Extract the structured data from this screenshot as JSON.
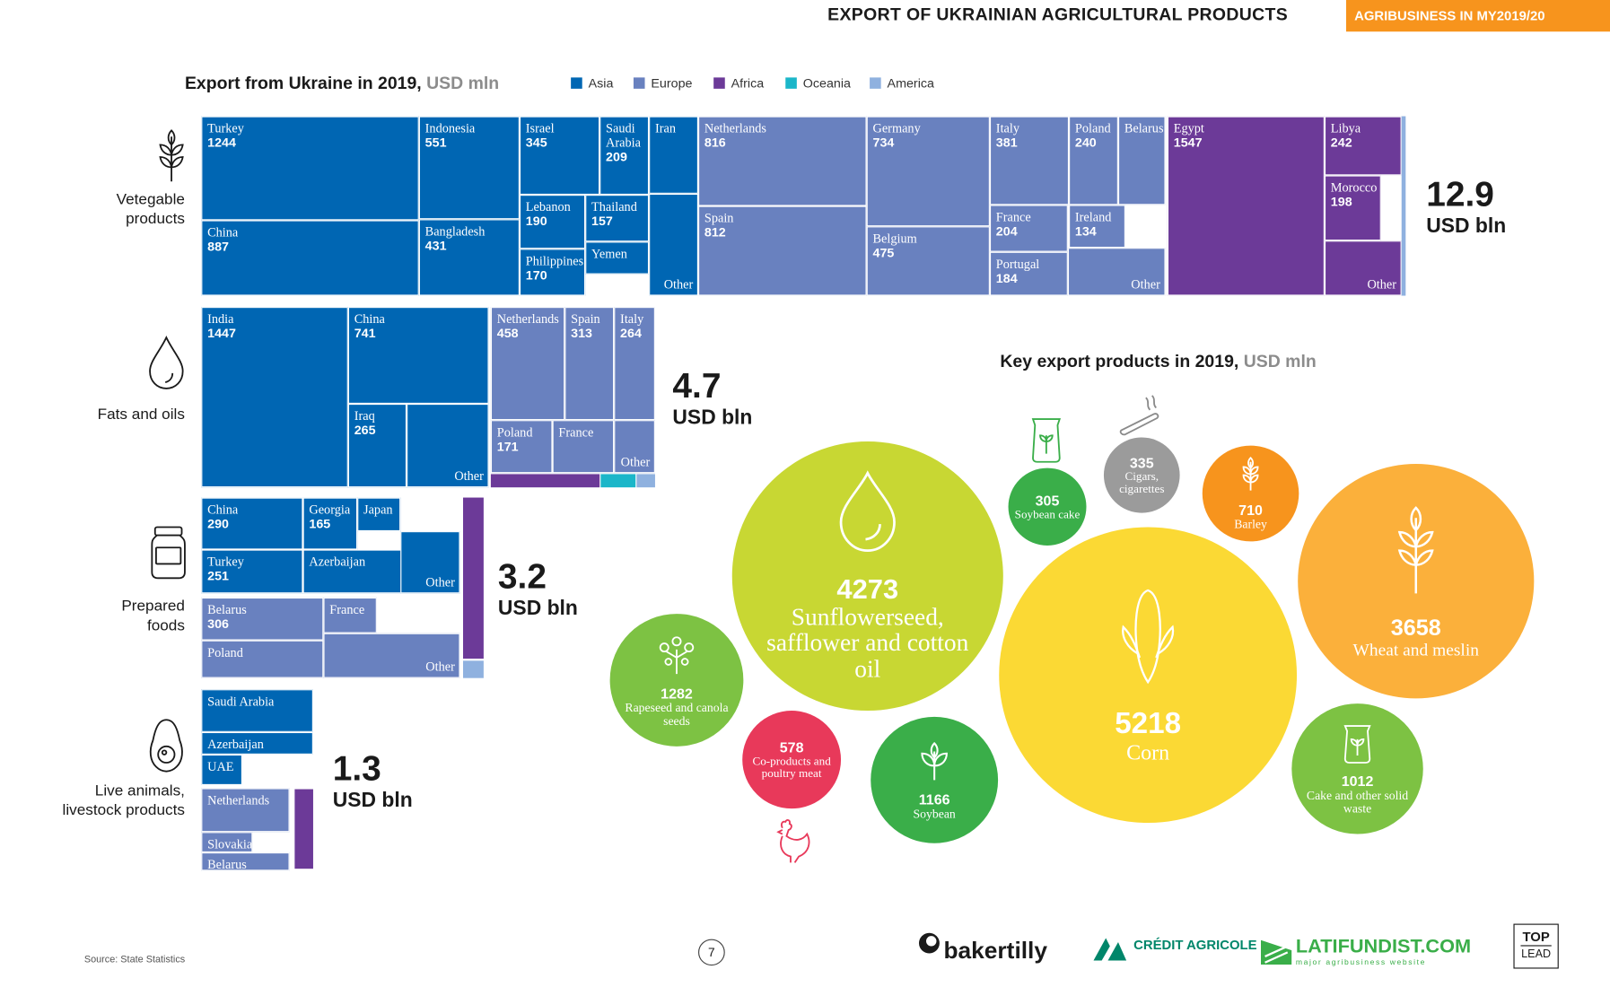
{
  "header": {
    "title": "EXPORT OF UKRAINIAN AGRICULTURAL PRODUCTS",
    "badge": "AGRIBUSINESS IN MY2019/20"
  },
  "treemap_section": {
    "title": "Export from Ukraine in 2019,",
    "unit": "USD mln"
  },
  "legend": [
    {
      "label": "Asia",
      "color": "#0066b3"
    },
    {
      "label": "Europe",
      "color": "#6981bf"
    },
    {
      "label": "Africa",
      "color": "#6c3a98"
    },
    {
      "label": "Oceania",
      "color": "#1bb6c9"
    },
    {
      "label": "America",
      "color": "#8fb1df"
    }
  ],
  "categories": [
    {
      "label": "Vetegable products",
      "total": "12.9",
      "total_unit": "USD bln"
    },
    {
      "label": "Fats and oils",
      "total": "4.7",
      "total_unit": "USD bln"
    },
    {
      "label": "Prepared foods",
      "total": "3.2",
      "total_unit": "USD bln"
    },
    {
      "label": "Live animals, livestock products",
      "total": "1.3",
      "total_unit": "USD bln"
    }
  ],
  "bubble_section": {
    "title": "Key export products in 2019,",
    "unit": "USD mln"
  },
  "footer": {
    "source": "Source: State Statistics",
    "page": "7",
    "logos": [
      "bakertilly",
      "CRÉDIT AGRICOLE",
      "LATIFUNDIST.COM",
      "major agribusiness website",
      "TOP",
      "LEAD"
    ]
  },
  "chart_data": [
    {
      "type": "treemap",
      "title": "Vetegable products",
      "items": [
        {
          "label": "Turkey",
          "value": 1244,
          "region": "Asia"
        },
        {
          "label": "China",
          "value": 887,
          "region": "Asia"
        },
        {
          "label": "Indonesia",
          "value": 551,
          "region": "Asia"
        },
        {
          "label": "Bangladesh",
          "value": 431,
          "region": "Asia"
        },
        {
          "label": "Israel",
          "value": 345,
          "region": "Asia"
        },
        {
          "label": "Saudi Arabia",
          "value": 209,
          "region": "Asia"
        },
        {
          "label": "Iran",
          "value": null,
          "region": "Asia"
        },
        {
          "label": "Lebanon",
          "value": 190,
          "region": "Asia"
        },
        {
          "label": "Thailand",
          "value": 157,
          "region": "Asia"
        },
        {
          "label": "Yemen",
          "value": null,
          "region": "Asia"
        },
        {
          "label": "Philippines",
          "value": 170,
          "region": "Asia"
        },
        {
          "label": "Other",
          "value": null,
          "region": "Asia"
        },
        {
          "label": "Netherlands",
          "value": 816,
          "region": "Europe"
        },
        {
          "label": "Spain",
          "value": 812,
          "region": "Europe"
        },
        {
          "label": "Germany",
          "value": 734,
          "region": "Europe"
        },
        {
          "label": "Belgium",
          "value": 475,
          "region": "Europe"
        },
        {
          "label": "Italy",
          "value": 381,
          "region": "Europe"
        },
        {
          "label": "France",
          "value": 204,
          "region": "Europe"
        },
        {
          "label": "Portugal",
          "value": 184,
          "region": "Europe"
        },
        {
          "label": "Poland",
          "value": 240,
          "region": "Europe"
        },
        {
          "label": "Belarus",
          "value": null,
          "region": "Europe"
        },
        {
          "label": "Ireland",
          "value": 134,
          "region": "Europe"
        },
        {
          "label": "Other",
          "value": null,
          "region": "Europe"
        },
        {
          "label": "Egypt",
          "value": 1547,
          "region": "Africa"
        },
        {
          "label": "Libya",
          "value": 242,
          "region": "Africa"
        },
        {
          "label": "Morocco",
          "value": 198,
          "region": "Africa"
        },
        {
          "label": "Other",
          "value": null,
          "region": "Africa"
        }
      ]
    },
    {
      "type": "treemap",
      "title": "Fats and oils",
      "items": [
        {
          "label": "India",
          "value": 1447,
          "region": "Asia"
        },
        {
          "label": "China",
          "value": 741,
          "region": "Asia"
        },
        {
          "label": "Iraq",
          "value": 265,
          "region": "Asia"
        },
        {
          "label": "Other",
          "value": null,
          "region": "Asia"
        },
        {
          "label": "Netherlands",
          "value": 458,
          "region": "Europe"
        },
        {
          "label": "Spain",
          "value": 313,
          "region": "Europe"
        },
        {
          "label": "Italy",
          "value": 264,
          "region": "Europe"
        },
        {
          "label": "Poland",
          "value": 171,
          "region": "Europe"
        },
        {
          "label": "France",
          "value": null,
          "region": "Europe"
        },
        {
          "label": "Other",
          "value": null,
          "region": "Europe"
        }
      ]
    },
    {
      "type": "treemap",
      "title": "Prepared foods",
      "items": [
        {
          "label": "China",
          "value": 290,
          "region": "Asia"
        },
        {
          "label": "Georgia",
          "value": 165,
          "region": "Asia"
        },
        {
          "label": "Japan",
          "value": null,
          "region": "Asia"
        },
        {
          "label": "Turkey",
          "value": 251,
          "region": "Asia"
        },
        {
          "label": "Azerbaijan",
          "value": null,
          "region": "Asia"
        },
        {
          "label": "Other",
          "value": null,
          "region": "Asia"
        },
        {
          "label": "Belarus",
          "value": 306,
          "region": "Europe"
        },
        {
          "label": "France",
          "value": null,
          "region": "Europe"
        },
        {
          "label": "Poland",
          "value": null,
          "region": "Europe"
        },
        {
          "label": "Other",
          "value": null,
          "region": "Europe"
        }
      ]
    },
    {
      "type": "treemap",
      "title": "Live animals, livestock products",
      "items": [
        {
          "label": "Saudi Arabia",
          "value": null,
          "region": "Asia"
        },
        {
          "label": "Azerbaijan",
          "value": null,
          "region": "Asia"
        },
        {
          "label": "UAE",
          "value": null,
          "region": "Asia"
        },
        {
          "label": "Netherlands",
          "value": null,
          "region": "Europe"
        },
        {
          "label": "Slovakia",
          "value": null,
          "region": "Europe"
        },
        {
          "label": "Belarus",
          "value": null,
          "region": "Europe"
        }
      ]
    },
    {
      "type": "bubble",
      "title": "Key export products in 2019, USD mln",
      "items": [
        {
          "label": "Corn",
          "value": 5218,
          "color": "#fbd934"
        },
        {
          "label": "Sunflowerseed, safflower and cotton oil",
          "value": 4273,
          "color": "#c8d733"
        },
        {
          "label": "Wheat and meslin",
          "value": 3658,
          "color": "#fbb03b"
        },
        {
          "label": "Rapeseed and canola seeds",
          "value": 1282,
          "color": "#7dc243"
        },
        {
          "label": "Soybean",
          "value": 1166,
          "color": "#3aae49"
        },
        {
          "label": "Cake and other solid waste",
          "value": 1012,
          "color": "#7dc243"
        },
        {
          "label": "Barley",
          "value": 710,
          "color": "#f7941d"
        },
        {
          "label": "Co-products and poultry meat",
          "value": 578,
          "color": "#e8395a"
        },
        {
          "label": "Cigars, cigarettes",
          "value": 335,
          "color": "#9b9b9b"
        },
        {
          "label": "Soybean cake",
          "value": 305,
          "color": "#3aae49"
        }
      ]
    }
  ]
}
